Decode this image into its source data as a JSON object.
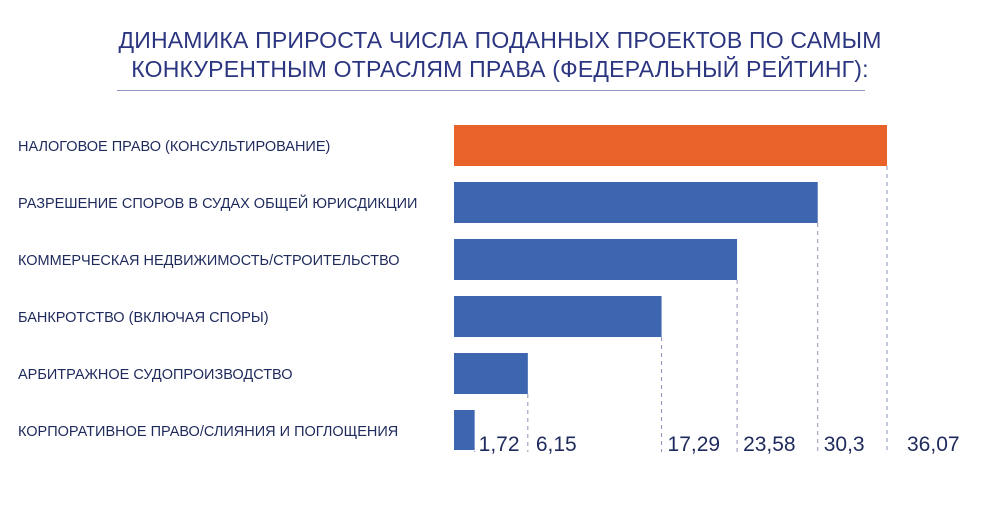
{
  "chart_data": {
    "type": "bar",
    "orientation": "horizontal",
    "title_lines": [
      "ДИНАМИКА ПРИРОСТА ЧИСЛА ПОДАННЫХ ПРОЕКТОВ ПО САМЫМ",
      "КОНКУРЕНТНЫМ ОТРАСЛЯМ ПРАВА (ФЕДЕРАЛЬНЫЙ РЕЙТИНГ):"
    ],
    "categories": [
      "НАЛОГОВОЕ ПРАВО (КОНСУЛЬТИРОВАНИЕ)",
      "РАЗРЕШЕНИЕ СПОРОВ В СУДАХ ОБЩЕЙ ЮРИСДИКЦИИ",
      "КОММЕРЧЕСКАЯ НЕДВИЖИМОСТЬ/СТРОИТЕЛЬСТВО",
      "БАНКРОТСТВО (ВКЛЮЧАЯ СПОРЫ)",
      "АРБИТРАЖНОЕ СУДОПРОИЗВОДСТВО",
      "КОРПОРАТИВНОЕ ПРАВО/СЛИЯНИЯ И ПОГЛОЩЕНИЯ"
    ],
    "values": [
      36.07,
      30.3,
      23.58,
      17.29,
      6.15,
      1.72
    ],
    "value_labels": [
      "36,07",
      "30,3",
      "23,58",
      "17,29",
      "6,15",
      "1,72"
    ],
    "colors": [
      "#e8622a",
      "#3d65b0",
      "#3d65b0",
      "#3d65b0",
      "#3d65b0",
      "#3d65b0"
    ],
    "guide_lines": "dashed",
    "xlim": [
      0,
      36.07
    ]
  }
}
